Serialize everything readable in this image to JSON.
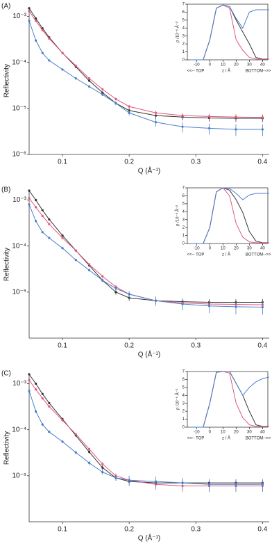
{
  "chart_data": [
    {
      "type": "scatter",
      "label": "(A)",
      "x_label": "Q (Å⁻¹)",
      "y_label": "Reflectivity",
      "log_y": true,
      "x": [
        0.05,
        0.06,
        0.07,
        0.08,
        0.1,
        0.12,
        0.14,
        0.16,
        0.18,
        0.2,
        0.24,
        0.28,
        0.32,
        0.36,
        0.4
      ],
      "xlim": [
        0.05,
        0.41
      ],
      "xticks": [
        0.1,
        0.2,
        0.3,
        0.4
      ],
      "ylim": [
        1e-06,
        0.0016
      ],
      "yticks": [
        {
          "value": 0.001,
          "label": "10⁻³"
        },
        {
          "value": 0.0001,
          "label": "10⁻⁴"
        },
        {
          "value": 1e-05,
          "label": "10⁻⁵"
        },
        {
          "value": 1e-06,
          "label": "10⁻⁶"
        }
      ],
      "series": [
        {
          "color": "#333333",
          "values": [
            0.0015,
            0.0009,
            0.00055,
            0.00035,
            0.00016,
            8e-05,
            4e-05,
            2.2e-05,
            1.3e-05,
            9e-06,
            7e-06,
            6.5e-06,
            6.2e-06,
            6.1e-06,
            6.1e-06
          ],
          "errors": [
            6e-05,
            4e-05,
            2.5e-05,
            1.5e-05,
            8e-06,
            4e-06,
            2.5e-06,
            1.5e-06,
            1.2e-06,
            1e-06,
            1e-06,
            1e-06,
            1e-06,
            1e-06,
            1e-06
          ]
        },
        {
          "color": "#e0587a",
          "values": [
            0.0013,
            0.0008,
            0.0005,
            0.00033,
            0.00016,
            8.5e-05,
            4.5e-05,
            2.6e-05,
            1.6e-05,
            1.1e-05,
            8e-06,
            7e-06,
            6.7e-06,
            6.5e-06,
            6.4e-06
          ],
          "errors": [
            6e-05,
            4e-05,
            2.5e-05,
            1.5e-05,
            8e-06,
            4e-06,
            2.5e-06,
            1.5e-06,
            1.2e-06,
            1e-06,
            1e-06,
            1e-06,
            1e-06,
            1e-06,
            1e-06
          ]
        },
        {
          "color": "#4a7fcb",
          "values": [
            0.0008,
            0.0003,
            0.00016,
            0.00011,
            7e-05,
            4.5e-05,
            3e-05,
            2e-05,
            1.3e-05,
            8e-06,
            5e-06,
            4e-06,
            3.7e-06,
            3.5e-06,
            3.5e-06
          ],
          "errors": [
            5e-05,
            2e-05,
            1e-05,
            6e-06,
            4e-06,
            3e-06,
            2e-06,
            1.5e-06,
            1.2e-06,
            1e-06,
            1e-06,
            1e-06,
            1e-06,
            1e-06,
            1e-06
          ]
        }
      ],
      "inset": {
        "type": "line",
        "y_label": "ρ /10⁻⁶ Å⁻²",
        "x_labels": [
          "<<-- TOP",
          "z / Å",
          "BOTTOM-->>"
        ],
        "x": [
          -15,
          -5,
          0,
          5,
          10,
          15,
          20,
          25,
          30,
          35,
          40,
          45
        ],
        "xlim": [
          -17,
          44
        ],
        "xticks": [
          -10,
          0,
          10,
          20,
          30,
          40
        ],
        "ylim": [
          0,
          7
        ],
        "yticks": [
          0,
          1,
          2,
          3,
          4,
          5,
          6,
          7
        ],
        "series": [
          {
            "color": "#333333",
            "values": [
              0,
              0,
              2.5,
              6.5,
              6.9,
              6.7,
              5,
              3.5,
              2,
              0.3,
              0.1,
              0.1
            ]
          },
          {
            "color": "#e0587a",
            "values": [
              0,
              0,
              2.5,
              6.5,
              6.9,
              6.5,
              2.5,
              1.2,
              0.3,
              0.1,
              0.1,
              0.1
            ]
          },
          {
            "color": "#4a7fcb",
            "values": [
              0,
              0,
              2.5,
              6.5,
              6.9,
              6.7,
              5.2,
              4,
              6,
              6.3,
              6.3,
              6.3
            ]
          }
        ]
      }
    },
    {
      "type": "scatter",
      "label": "(B)",
      "x_label": "Q (Å⁻¹)",
      "y_label": "Reflectivity",
      "log_y": true,
      "x": [
        0.05,
        0.06,
        0.07,
        0.08,
        0.1,
        0.12,
        0.14,
        0.16,
        0.18,
        0.2,
        0.24,
        0.28,
        0.32,
        0.36,
        0.4
      ],
      "xlim": [
        0.05,
        0.41
      ],
      "xticks": [
        0.1,
        0.2,
        0.3,
        0.4
      ],
      "ylim": [
        1e-06,
        0.0016
      ],
      "yticks": [
        {
          "value": 0.001,
          "label": "10⁻³"
        },
        {
          "value": 0.0001,
          "label": "10⁻⁴"
        },
        {
          "value": 1e-05,
          "label": "10⁻⁵"
        }
      ],
      "series": [
        {
          "color": "#333333",
          "values": [
            0.0016,
            0.001,
            0.0006,
            0.00038,
            0.00017,
            8e-05,
            3.8e-05,
            1.8e-05,
            1e-05,
            7.5e-06,
            6.5e-06,
            6.2e-06,
            6e-06,
            6e-06,
            6e-06
          ],
          "errors": [
            6e-05,
            4e-05,
            2.5e-05,
            1.5e-05,
            8e-06,
            4e-06,
            2.5e-06,
            1.5e-06,
            1.2e-06,
            1e-06,
            1e-06,
            1e-06,
            1e-06,
            1e-06,
            1e-06
          ]
        },
        {
          "color": "#e0587a",
          "values": [
            0.0011,
            0.0007,
            0.00045,
            0.0003,
            0.00015,
            8e-05,
            4e-05,
            2.2e-05,
            1.3e-05,
            9e-06,
            6.5e-06,
            5.8e-06,
            5.5e-06,
            5.4e-06,
            5.3e-06
          ],
          "errors": [
            6e-05,
            4e-05,
            2.5e-05,
            1.5e-05,
            8e-06,
            4e-06,
            2.5e-06,
            1.5e-06,
            1.2e-06,
            1e-06,
            1e-06,
            1e-06,
            1e-06,
            1e-06,
            1e-06
          ]
        },
        {
          "color": "#4a7fcb",
          "values": [
            0.0008,
            0.00035,
            0.0002,
            0.00015,
            9e-05,
            5e-05,
            3e-05,
            1.8e-05,
            1.2e-05,
            9e-06,
            6.5e-06,
            5.5e-06,
            5e-06,
            4.8e-06,
            4.7e-06
          ],
          "errors": [
            5e-05,
            2e-05,
            1e-05,
            6e-06,
            4e-06,
            3e-06,
            2e-06,
            1.5e-06,
            1.2e-06,
            1.5e-06,
            1.5e-06,
            1.5e-06,
            1.5e-06,
            1.5e-06,
            1.5e-06
          ]
        }
      ],
      "inset": {
        "type": "line",
        "y_label": "ρ /10⁻⁶ Å⁻²",
        "x_labels": [
          "<<-- TOP",
          "z / Å",
          "BOTTOM-->>"
        ],
        "x": [
          -15,
          -5,
          0,
          5,
          10,
          15,
          20,
          25,
          30,
          35,
          40,
          45
        ],
        "xlim": [
          -17,
          44
        ],
        "xticks": [
          -10,
          0,
          10,
          20,
          30,
          40
        ],
        "ylim": [
          0,
          7
        ],
        "yticks": [
          0,
          1,
          2,
          3,
          4,
          5,
          6,
          7
        ],
        "series": [
          {
            "color": "#333333",
            "values": [
              0,
              0,
              2,
              6.5,
              7,
              6.7,
              5.5,
              3.9,
              1.5,
              0.3,
              0.1,
              0.1
            ]
          },
          {
            "color": "#e0587a",
            "values": [
              0,
              0,
              2,
              6.5,
              7,
              6,
              2.5,
              0.8,
              0.2,
              0.1,
              0.1,
              0.1
            ]
          },
          {
            "color": "#4a7fcb",
            "values": [
              0,
              0,
              2,
              6.5,
              7,
              6.9,
              6.3,
              5.5,
              6.1,
              6.3,
              6.3,
              6.3
            ]
          }
        ]
      }
    },
    {
      "type": "scatter",
      "label": "(C)",
      "x_label": "Q (Å⁻¹)",
      "y_label": "Reflectivity",
      "log_y": true,
      "x": [
        0.05,
        0.06,
        0.07,
        0.08,
        0.1,
        0.12,
        0.14,
        0.16,
        0.18,
        0.2,
        0.24,
        0.28,
        0.32,
        0.36,
        0.4
      ],
      "xlim": [
        0.05,
        0.41
      ],
      "xticks": [
        0.1,
        0.2,
        0.3,
        0.4
      ],
      "ylim": [
        1e-06,
        0.0016
      ],
      "yticks": [
        {
          "value": 0.001,
          "label": "10⁻³"
        },
        {
          "value": 0.0001,
          "label": "10⁻⁴"
        },
        {
          "value": 1e-05,
          "label": "10⁻⁵"
        }
      ],
      "series": [
        {
          "color": "#333333",
          "values": [
            0.0016,
            0.001,
            0.0006,
            0.00038,
            0.00017,
            7.5e-05,
            3.3e-05,
            1.5e-05,
            9e-06,
            7.5e-06,
            7e-06,
            7e-06,
            7e-06,
            7e-06,
            7e-06
          ],
          "errors": [
            6e-05,
            4e-05,
            2.5e-05,
            1.5e-05,
            8e-06,
            4e-06,
            2.5e-06,
            1.5e-06,
            1.2e-06,
            1e-06,
            1e-06,
            1e-06,
            1e-06,
            1e-06,
            1e-06
          ]
        },
        {
          "color": "#e0587a",
          "values": [
            0.0012,
            0.00075,
            0.00048,
            0.00032,
            0.00016,
            8e-05,
            3.8e-05,
            1.8e-05,
            1e-05,
            8e-06,
            6.5e-06,
            6e-06,
            6e-06,
            6e-06,
            6e-06
          ],
          "errors": [
            6e-05,
            4e-05,
            2.5e-05,
            1.5e-05,
            8e-06,
            4e-06,
            2.5e-06,
            1.5e-06,
            1.2e-06,
            1.5e-06,
            1.5e-06,
            1.5e-06,
            1.5e-06,
            1.5e-06,
            1.5e-06
          ]
        },
        {
          "color": "#4a7fcb",
          "values": [
            0.0007,
            0.00025,
            0.00013,
            9e-05,
            5.5e-05,
            3.2e-05,
            1.9e-05,
            1.2e-05,
            9e-06,
            8e-06,
            7.5e-06,
            7e-06,
            6.5e-06,
            6.5e-06,
            6.5e-06
          ],
          "errors": [
            5e-05,
            2e-05,
            1e-05,
            6e-06,
            4e-06,
            3e-06,
            2e-06,
            1.5e-06,
            1.2e-06,
            2e-06,
            2e-06,
            2e-06,
            2e-06,
            2e-06,
            2e-06
          ]
        }
      ],
      "inset": {
        "type": "line",
        "y_label": "ρ /10⁻⁶ Å⁻²",
        "x_labels": [
          "<<-- TOP",
          "z / Å",
          "BOTTOM-->>"
        ],
        "x": [
          -15,
          -5,
          0,
          5,
          10,
          15,
          20,
          25,
          30,
          35,
          40,
          45
        ],
        "xlim": [
          -17,
          44
        ],
        "xticks": [
          -10,
          0,
          10,
          20,
          30,
          40
        ],
        "ylim": [
          0,
          7
        ],
        "yticks": [
          0,
          1,
          2,
          3,
          4,
          5,
          6,
          7
        ],
        "series": [
          {
            "color": "#333333",
            "values": [
              0,
              0,
              3,
              6.9,
              7,
              7,
              5.5,
              4,
              2,
              0.3,
              0.1,
              0.1
            ]
          },
          {
            "color": "#e0587a",
            "values": [
              0,
              0,
              3,
              6.9,
              7,
              6.8,
              3,
              1.2,
              0.3,
              0.1,
              0.1,
              0.1
            ]
          },
          {
            "color": "#4a7fcb",
            "values": [
              0,
              0,
              3,
              6.9,
              7,
              7,
              5.5,
              4,
              5,
              5.7,
              6.1,
              6.3
            ]
          }
        ]
      }
    }
  ]
}
